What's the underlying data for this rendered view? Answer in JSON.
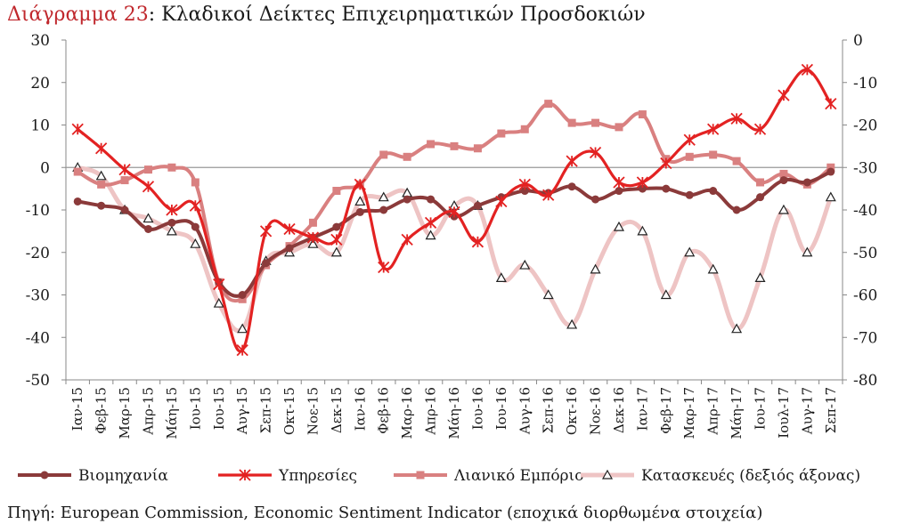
{
  "title": {
    "prefix": "Διάγραμμα 23",
    "text": ": Κλαδικοί Δείκτες Επιχειρηματικών Προσδοκιών"
  },
  "source": "Πηγή: European Commission, Economic Sentiment Indicator (εποχικά διορθωμένα στοιχεία)",
  "colors": {
    "industry": "#8b3a3a",
    "services": "#e32222",
    "retail": "#d98080",
    "construction": "#eec4c4"
  },
  "chart_data": {
    "type": "line",
    "title": "Κλαδικοί Δείκτες Επιχειρηματικών Προσδοκιών",
    "categories": [
      "Ιαν-15",
      "Φεβ-15",
      "Μαρ-15",
      "Απρ-15",
      "Μάη-15",
      "Ιου-15",
      "Ιου-15",
      "Αυγ-15",
      "Σεπ-15",
      "Οκτ-15",
      "Νοε-15",
      "Δεκ-15",
      "Ιαν-16",
      "Φεβ-16",
      "Μαρ-16",
      "Απρ-16",
      "Μάη-16",
      "Ιου-16",
      "Ιου-16",
      "Αυγ-16",
      "Σεπ-16",
      "Οκτ-16",
      "Νοε-16",
      "Δεκ-16",
      "Ιαν-17",
      "Φεβ-17",
      "Μαρ-17",
      "Απρ-17",
      "Μάη-17",
      "Ιου-17",
      "Ιουλ-17",
      "Αυγ-17",
      "Σεπ-17"
    ],
    "left_axis": {
      "ylim": [
        -50,
        30
      ],
      "ticks": [
        "30",
        "20",
        "10",
        "0",
        "-10",
        "-20",
        "-30",
        "-40",
        "-50"
      ]
    },
    "right_axis": {
      "ylim": [
        -80,
        0
      ],
      "ticks": [
        "0",
        "-10",
        "-20",
        "-30",
        "-40",
        "-50",
        "-60",
        "-70",
        "-80"
      ]
    },
    "legend_position": "bottom",
    "grid": false,
    "series": [
      {
        "name": "Βιομηχανία",
        "axis": "left",
        "marker": "circle",
        "values": [
          -8,
          -9,
          -10,
          -14.5,
          -13,
          -14,
          -27,
          -30,
          -22.5,
          -19,
          -16.5,
          -14,
          -10.5,
          -10,
          -7.5,
          -7.5,
          -11.5,
          -9,
          -7,
          -5.5,
          -6,
          -4.5,
          -7.5,
          -5.5,
          -5,
          -5,
          -6.5,
          -5.5,
          -10,
          -7,
          -3,
          -3.5,
          -1
        ]
      },
      {
        "name": "Υπηρεσίες",
        "axis": "left",
        "marker": "star",
        "values": [
          9,
          4.5,
          -0.5,
          -4.5,
          -10,
          -9,
          -27.5,
          -43,
          -15,
          -14.5,
          -16.5,
          -17,
          -4,
          -23.5,
          -17,
          -13,
          -10.5,
          -17.5,
          -8,
          -4,
          -6.5,
          1.5,
          3.5,
          -3.5,
          -3.5,
          1,
          6.5,
          9,
          11.5,
          9,
          17,
          23,
          15
        ]
      },
      {
        "name": "Λιανικό Εμπόριο",
        "axis": "left",
        "marker": "square",
        "values": [
          -1,
          -4,
          -3,
          -0.5,
          0,
          -3.5,
          -27,
          -31,
          -23,
          -18.5,
          -13,
          -5.5,
          -4,
          3,
          2.5,
          5.5,
          5,
          4.5,
          8,
          9,
          15,
          10.5,
          10.5,
          9.5,
          12.5,
          2,
          2.5,
          3,
          1.5,
          -3.5,
          -1.5,
          -4,
          0
        ]
      },
      {
        "name": "Κατασκευές (δεξιός άξονας)",
        "axis": "right",
        "marker": "triangle",
        "values": [
          -30,
          -32,
          -40,
          -42,
          -45,
          -48,
          -62,
          -68,
          -52,
          -50,
          -48,
          -50,
          -38,
          -37,
          -36,
          -46,
          -39,
          -39,
          -56,
          -53,
          -60,
          -67,
          -54,
          -44,
          -45,
          -60,
          -50,
          -54,
          -68,
          -56,
          -40,
          -50,
          -37
        ]
      }
    ]
  }
}
